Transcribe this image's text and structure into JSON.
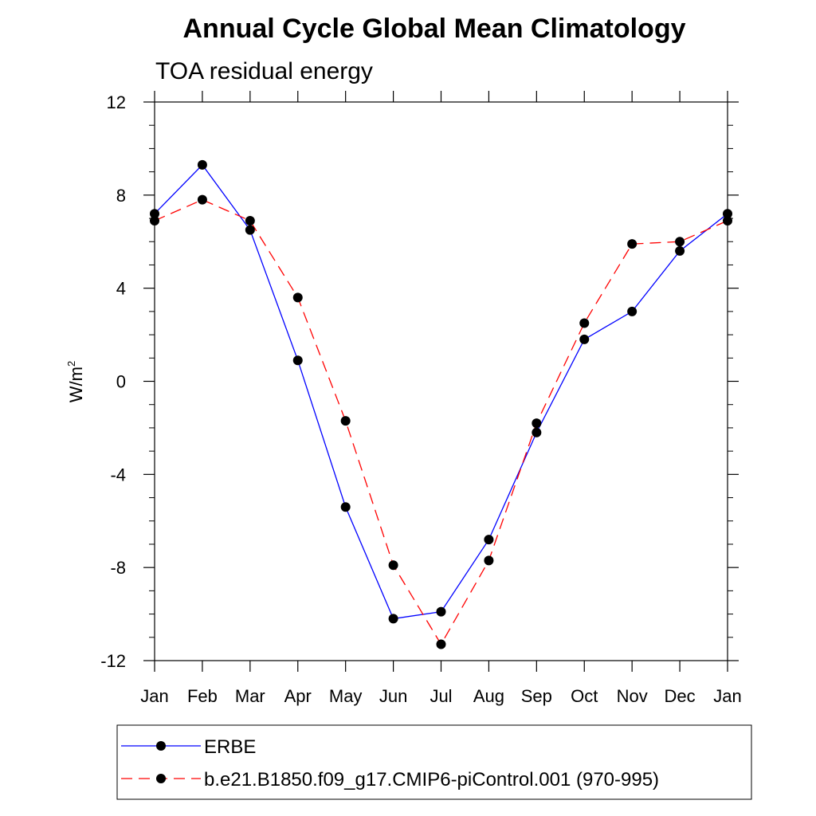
{
  "chart_data": {
    "type": "line",
    "title": "Annual Cycle Global Mean Climatology",
    "subtitle": "TOA residual energy",
    "ylabel": "W/m",
    "ylabel_superscript": "2",
    "ylim": [
      -12,
      12
    ],
    "yticks": [
      "12",
      "8",
      "4",
      "0",
      "-4",
      "-8",
      "-12"
    ],
    "ytick_values": [
      12,
      8,
      4,
      0,
      -4,
      -8,
      -12
    ],
    "categories": [
      "Jan",
      "Feb",
      "Mar",
      "Apr",
      "May",
      "Jun",
      "Jul",
      "Aug",
      "Sep",
      "Oct",
      "Nov",
      "Dec",
      "Jan"
    ],
    "grid": false,
    "legend_placement": "bottom",
    "series": [
      {
        "name": "ERBE",
        "color": "#0000ff",
        "dash": "solid",
        "values": [
          7.2,
          9.3,
          6.5,
          0.9,
          -5.4,
          -10.2,
          -9.9,
          -6.8,
          -2.2,
          1.8,
          3.0,
          5.6,
          7.2
        ]
      },
      {
        "name": "b.e21.B1850.f09_g17.CMIP6-piControl.001 (970-995)",
        "color": "#ff0000",
        "dash": "dashed",
        "values": [
          6.9,
          7.8,
          6.9,
          3.6,
          -1.7,
          -7.9,
          -11.3,
          -7.7,
          -1.8,
          2.5,
          5.9,
          6.0,
          6.9
        ]
      }
    ]
  }
}
